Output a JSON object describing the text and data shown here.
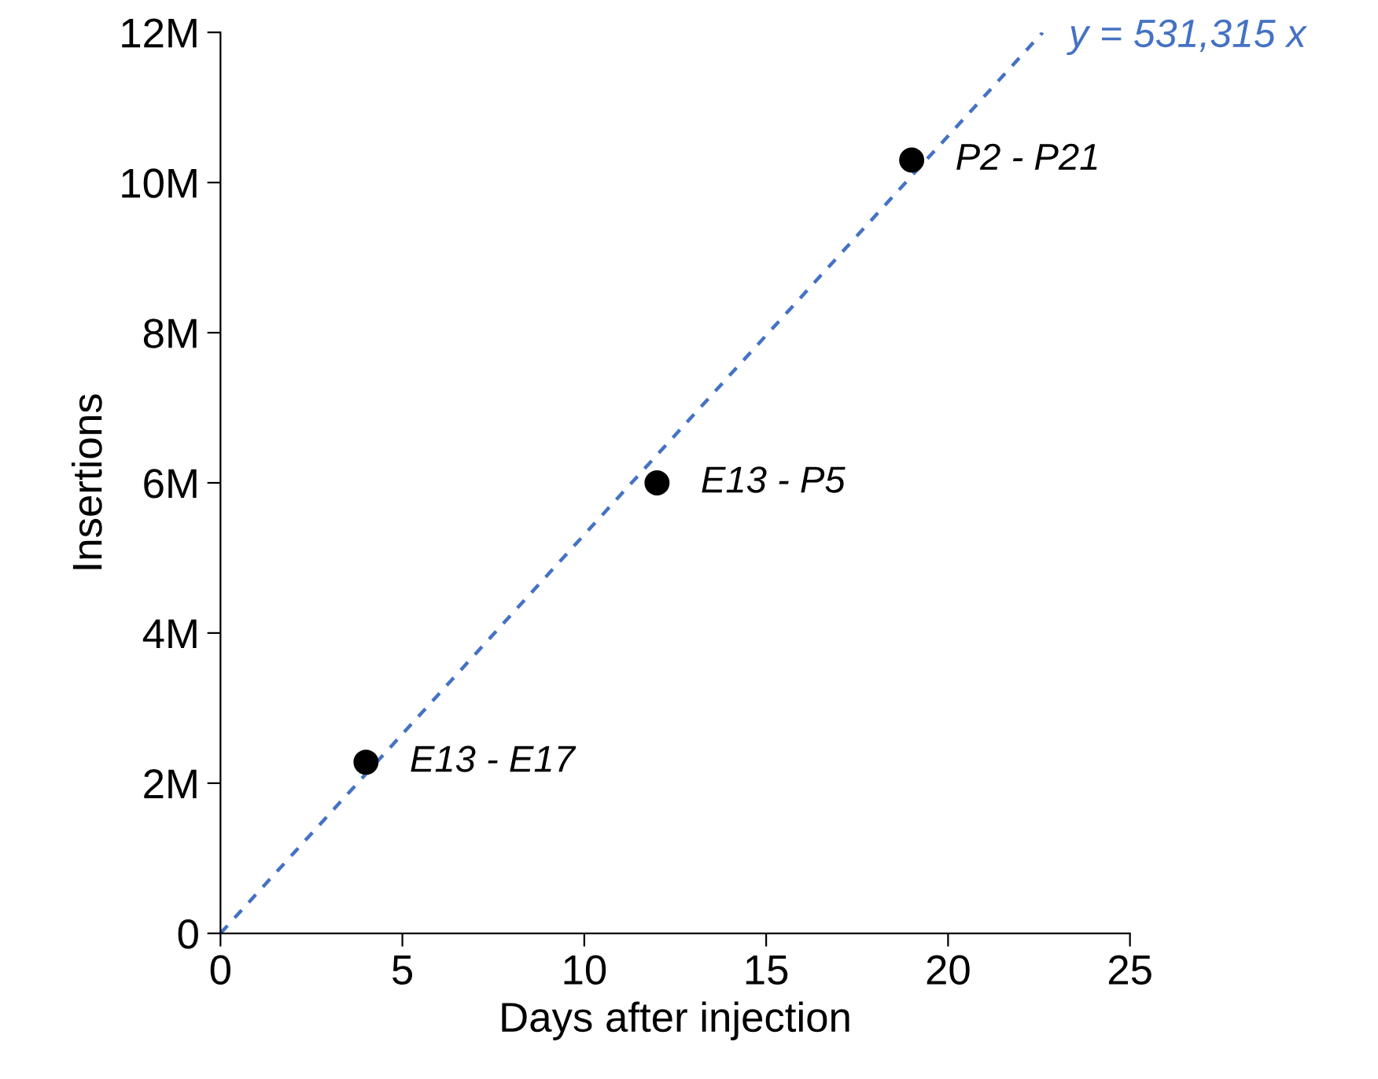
{
  "chart_data": {
    "type": "scatter",
    "xlabel": "Days after injection",
    "ylabel": "Insertions",
    "xlim": [
      0,
      25
    ],
    "xticks": [
      0,
      5,
      10,
      15,
      20,
      25
    ],
    "ylim": [
      0,
      12000000
    ],
    "yticks": [
      0,
      {
        "value": 2000000,
        "label": "2M"
      },
      {
        "value": 4000000,
        "label": "4M"
      },
      {
        "value": 6000000,
        "label": "6M"
      },
      {
        "value": 8000000,
        "label": "8M"
      },
      {
        "value": 10000000,
        "label": "10M"
      },
      {
        "value": 12000000,
        "label": "12M"
      }
    ],
    "grid": false,
    "legend": false,
    "marker": "circle",
    "series": [
      {
        "color": "#000000",
        "x": [
          4,
          12,
          19
        ],
        "values": [
          2280000,
          6000000,
          10300000
        ]
      },
      {
        "type": "line",
        "color": "#4472c4",
        "line_style": "dashed",
        "marker": "none",
        "x": [
          0,
          22.6
        ],
        "values": [
          0,
          12000000
        ]
      }
    ],
    "annotations": [
      {
        "text": "E13 - E17",
        "x": 4,
        "y": 2280000
      },
      {
        "text": "E13 - P5",
        "x": 12,
        "y": 6000000
      },
      {
        "text": "P2 - P21",
        "x": 19,
        "y": 10300000
      },
      {
        "text": "y = 531,315 x",
        "x": 22.6,
        "y": 12000000
      }
    ]
  }
}
